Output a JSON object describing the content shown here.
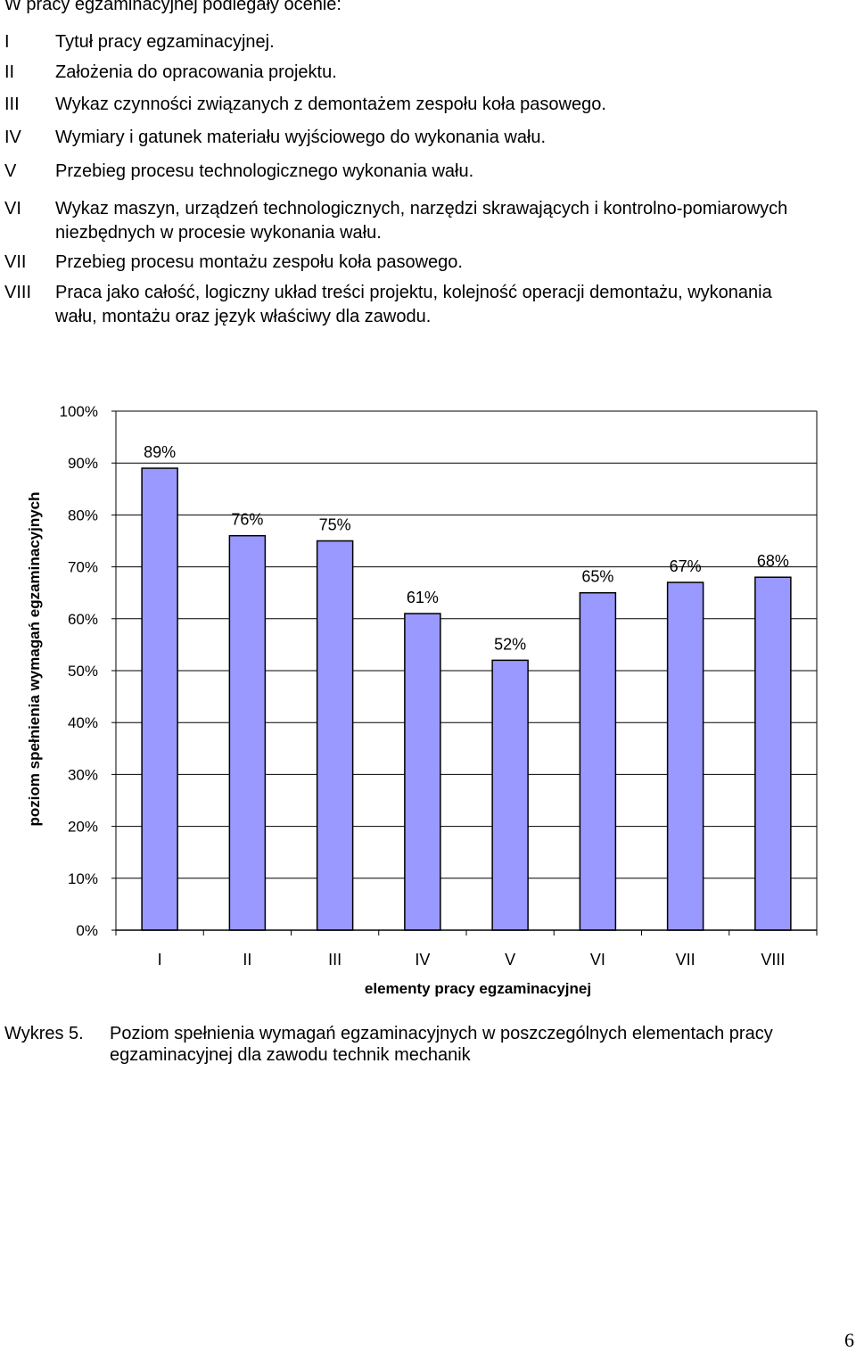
{
  "intro": "W pracy egzaminacyjnej podlegały ocenie:",
  "criteria": [
    {
      "num": "I",
      "text": "Tytuł pracy egzaminacyjnej."
    },
    {
      "num": "II",
      "text": "Założenia do opracowania projektu."
    },
    {
      "num": "III",
      "text": "Wykaz czynności związanych z demontażem zespołu koła pasowego."
    },
    {
      "num": "IV",
      "text": "Wymiary i gatunek materiału wyjściowego do wykonania wału."
    },
    {
      "num": "V",
      "text": "Przebieg procesu technologicznego wykonania wału."
    },
    {
      "num": "VI",
      "text": "Wykaz maszyn, urządzeń technologicznych, narzędzi skrawających i kontrolno-pomiarowych niezbędnych w procesie wykonania wału."
    },
    {
      "num": "VII",
      "text": "Przebieg procesu montażu zespołu koła pasowego."
    },
    {
      "num": "VIII",
      "text": "Praca jako całość, logiczny układ treści projektu, kolejność operacji demontażu, wykonania wału, montażu oraz język właściwy dla zawodu."
    }
  ],
  "chart_data": {
    "type": "bar",
    "categories": [
      "I",
      "II",
      "III",
      "IV",
      "V",
      "VI",
      "VII",
      "VIII"
    ],
    "values": [
      89,
      76,
      75,
      61,
      52,
      65,
      67,
      68
    ],
    "value_labels": [
      "89%",
      "76%",
      "75%",
      "61%",
      "52%",
      "65%",
      "67%",
      "68%"
    ],
    "ylim": [
      0,
      100
    ],
    "yticks": [
      "0%",
      "10%",
      "20%",
      "30%",
      "40%",
      "50%",
      "60%",
      "70%",
      "80%",
      "90%",
      "100%"
    ],
    "xlabel": "elementy pracy egzaminacyjnej",
    "ylabel": "poziom spełnienia wymagań egzaminacyjnych",
    "grid": "horizontal",
    "bar_color": "#9999ff",
    "bar_edge": "#000000",
    "plot_background": "#ffffff",
    "chart_background": "#ffffff"
  },
  "caption": {
    "label": "Wykres 5.",
    "text_line1": "Poziom spełnienia wymagań egzaminacyjnych w poszczególnych elementach pracy",
    "text_line2": "egzaminacyjnej dla zawodu technik mechanik"
  },
  "page_number": "6"
}
